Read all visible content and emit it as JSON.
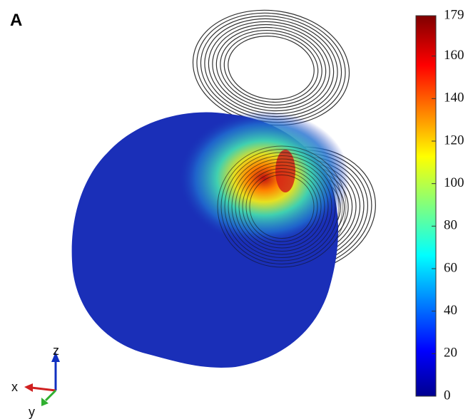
{
  "panel_label": "A",
  "colorbar": {
    "range": [
      0,
      179
    ],
    "ticks": [
      0,
      20,
      40,
      60,
      80,
      100,
      120,
      140,
      160,
      179
    ]
  },
  "axes_triad": {
    "x": "x",
    "y": "y",
    "z": "z"
  }
}
